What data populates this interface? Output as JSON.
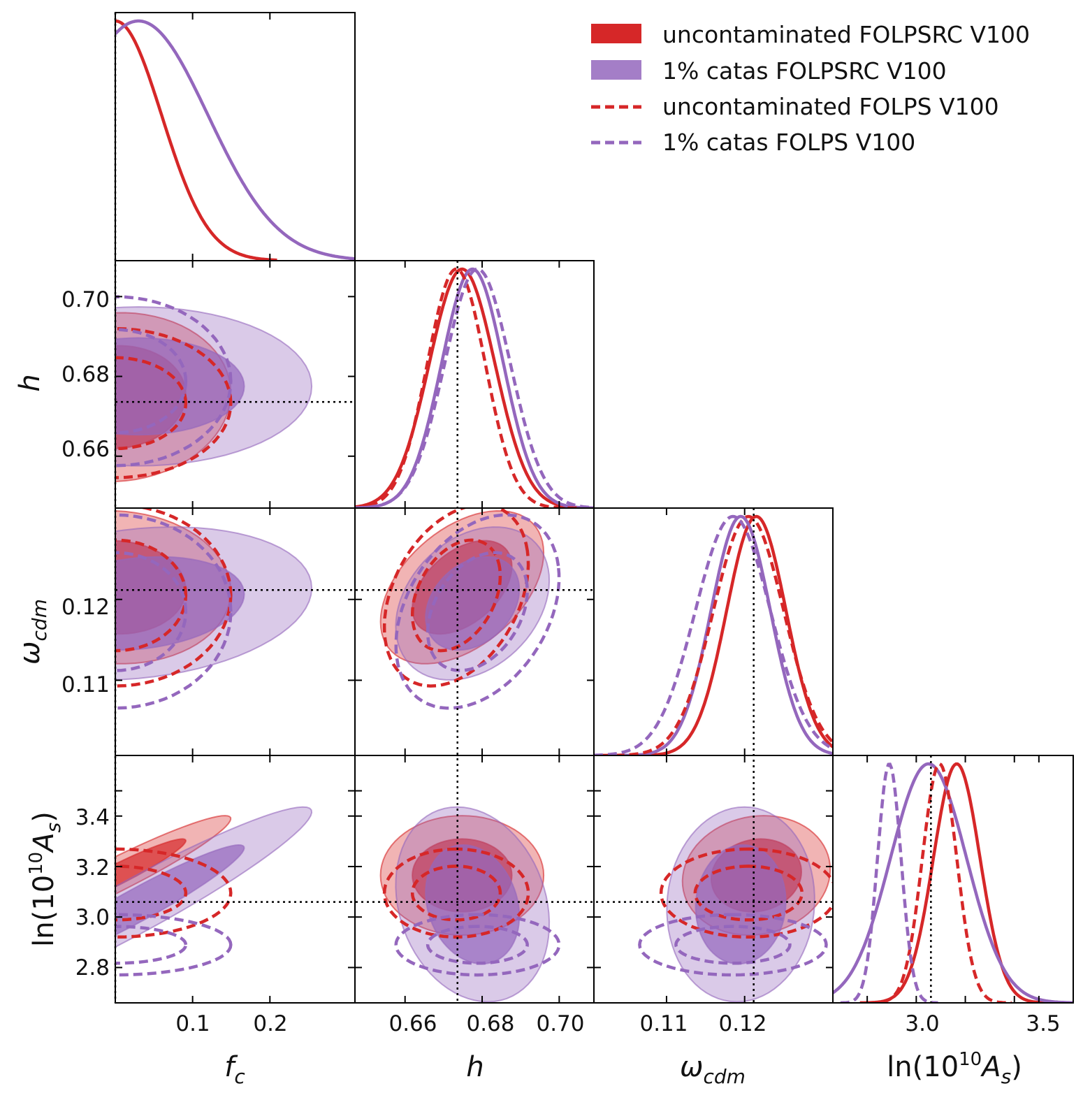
{
  "chart_data": {
    "type": "triangle",
    "parameters": [
      {
        "key": "fc",
        "label": "f",
        "sub": "c",
        "range": [
          0.0,
          0.31
        ],
        "ticks": [
          0.1,
          0.2
        ],
        "tick_labels": [
          "0.1",
          "0.2"
        ]
      },
      {
        "key": "h",
        "label": "h",
        "sub": "",
        "range": [
          0.647,
          0.709
        ],
        "ticks": [
          0.66,
          0.68,
          0.7
        ],
        "tick_labels": [
          "0.66",
          "0.68",
          "0.70"
        ]
      },
      {
        "key": "wcdm",
        "label": "ω",
        "sub": "cdm",
        "range": [
          0.1007,
          0.1313
        ],
        "ticks": [
          0.11,
          0.12
        ],
        "tick_labels": [
          "0.11",
          "0.12"
        ]
      },
      {
        "key": "lnAs",
        "label": "ln(10",
        "sup": "10",
        "label_tail": "A",
        "sub": "s",
        "label_close": ")",
        "range": [
          2.66,
          3.64
        ],
        "ticks": [
          2.8,
          3.0,
          3.2,
          3.4,
          3.5
        ],
        "tick_labels": [
          "2.8",
          "3.0",
          "3.2",
          "3.4",
          "3.5"
        ]
      }
    ],
    "axis_tick_sets": {
      "fc_x": [
        "0.1",
        "0.2"
      ],
      "h_x": [
        "0.66",
        "0.68",
        "0.70"
      ],
      "h_y": [
        "0.66",
        "0.68",
        "0.70"
      ],
      "wcdm_x": [
        "0.11",
        "0.12"
      ],
      "wcdm_y": [
        "0.11",
        "0.12"
      ],
      "lnAs_x": [
        "3.0",
        "3.5"
      ],
      "lnAs_y": [
        "2.8",
        "3.0",
        "3.2",
        "3.4"
      ]
    },
    "truth": {
      "fc": 0.0,
      "h": 0.6736,
      "wcdm": 0.12116,
      "lnAs": 3.0598
    },
    "series": [
      {
        "name": "uncontaminated FOLPSRC V100",
        "style": "filled",
        "color": "#d62728",
        "mean": {
          "fc": 0.0,
          "h": 0.6748,
          "wcdm": 0.1215,
          "lnAs": 3.165
        },
        "sigma": {
          "fc": 0.06,
          "h": 0.0085,
          "wcdm": 0.0038,
          "lnAs": 0.095
        },
        "corr": {
          "fc_h": 0.05,
          "fc_wcdm": -0.05,
          "fc_lnAs": 0.95,
          "h_wcdm": 0.45,
          "h_lnAs": 0.0,
          "wcdm_lnAs": 0.1
        }
      },
      {
        "name": "1% catas FOLPSRC V100",
        "style": "filled",
        "color": "#9467bd",
        "mean": {
          "fc": 0.03,
          "h": 0.6775,
          "wcdm": 0.1195,
          "lnAs": 3.05
        },
        "sigma": {
          "fc": 0.09,
          "h": 0.008,
          "wcdm": 0.0038,
          "lnAs": 0.155
        },
        "corr": {
          "fc_h": 0.0,
          "fc_wcdm": 0.2,
          "fc_lnAs": 0.95,
          "h_wcdm": 0.3,
          "h_lnAs": -0.2,
          "wcdm_lnAs": 0.05
        }
      },
      {
        "name": "uncontaminated FOLPS V100",
        "style": "dashed",
        "color": "#d62728",
        "mean": {
          "fc": 0.0,
          "h": 0.6733,
          "wcdm": 0.1205,
          "lnAs": 3.095
        },
        "sigma": {
          "fc": 0.06,
          "h": 0.0075,
          "wcdm": 0.0045,
          "lnAs": 0.07
        },
        "corr": {
          "fc_h": 0.0,
          "fc_wcdm": 0.0,
          "fc_lnAs": 0.0,
          "h_wcdm": 0.35,
          "h_lnAs": 0.0,
          "wcdm_lnAs": 0.0
        }
      },
      {
        "name": "1% catas FOLPS V100",
        "style": "dashed",
        "color": "#9467bd",
        "mean": {
          "fc": 0.0,
          "h": 0.6788,
          "wcdm": 0.1185,
          "lnAs": 2.89
        },
        "sigma": {
          "fc": 0.06,
          "h": 0.0085,
          "wcdm": 0.0048,
          "lnAs": 0.048
        },
        "corr": {
          "fc_h": 0.0,
          "fc_wcdm": 0.0,
          "fc_lnAs": 0.0,
          "h_wcdm": 0.35,
          "h_lnAs": 0.0,
          "wcdm_lnAs": 0.0
        }
      }
    ],
    "legend_position": "top-right",
    "truth_lines": "dotted black",
    "grid": false
  }
}
